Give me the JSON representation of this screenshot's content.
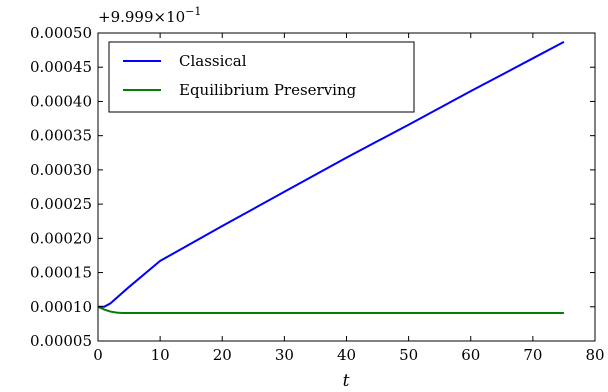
{
  "chart_data": {
    "type": "line",
    "xlabel": "t",
    "ylabel": "",
    "xlim": [
      0,
      80
    ],
    "ylim": [
      5e-05,
      0.0005
    ],
    "x_ticks": [
      0,
      10,
      20,
      30,
      40,
      50,
      60,
      70,
      80
    ],
    "x_tick_labels": [
      "0",
      "10",
      "20",
      "30",
      "40",
      "50",
      "60",
      "70",
      "80"
    ],
    "y_ticks": [
      5e-05,
      0.0001,
      0.00015,
      0.0002,
      0.00025,
      0.0003,
      0.00035,
      0.0004,
      0.00045,
      0.0005
    ],
    "y_tick_labels": [
      "0.00005",
      "0.00010",
      "0.00015",
      "0.00020",
      "0.00025",
      "0.00030",
      "0.00035",
      "0.00040",
      "0.00045",
      "0.00050"
    ],
    "y_offset_text": "+9.999×10",
    "y_offset_exponent": "−1",
    "legend_position": "top-left",
    "grid": false,
    "series": [
      {
        "name": "Classical",
        "color": "#0000ff",
        "x": [
          0,
          1,
          2,
          3,
          4,
          5,
          10,
          20,
          30,
          40,
          50,
          60,
          70,
          75
        ],
        "y": [
          0.0001,
          0.0001,
          0.000105,
          0.000113,
          0.000121,
          0.000129,
          0.000167,
          0.000218,
          0.000268,
          0.000318,
          0.000366,
          0.000415,
          0.000463,
          0.000487
        ]
      },
      {
        "name": "Equilibrium Preserving",
        "color": "#008000",
        "x": [
          0,
          1,
          2,
          3,
          4,
          5,
          10,
          20,
          30,
          40,
          50,
          60,
          70,
          75
        ],
        "y": [
          0.0001,
          9.6e-05,
          9.3e-05,
          9.15e-05,
          9.1e-05,
          9.1e-05,
          9.1e-05,
          9.1e-05,
          9.1e-05,
          9.1e-05,
          9.1e-05,
          9.1e-05,
          9.1e-05,
          9.1e-05
        ]
      }
    ]
  }
}
